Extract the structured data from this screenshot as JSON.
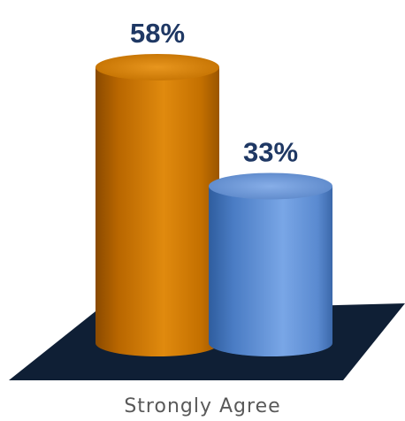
{
  "chart_data": {
    "type": "bar",
    "style": "3d-cylinder",
    "categories": [
      "Strongly Agree"
    ],
    "series": [
      {
        "values": [
          58
        ],
        "color": "#d67b00"
      },
      {
        "values": [
          33
        ],
        "color": "#5b8fd6"
      }
    ],
    "data_labels": [
      "58%",
      "33%"
    ],
    "value_suffix": "%",
    "ylim": [
      0,
      65
    ],
    "grid": false,
    "legend": "none",
    "floor_color": "#0f1f35"
  }
}
